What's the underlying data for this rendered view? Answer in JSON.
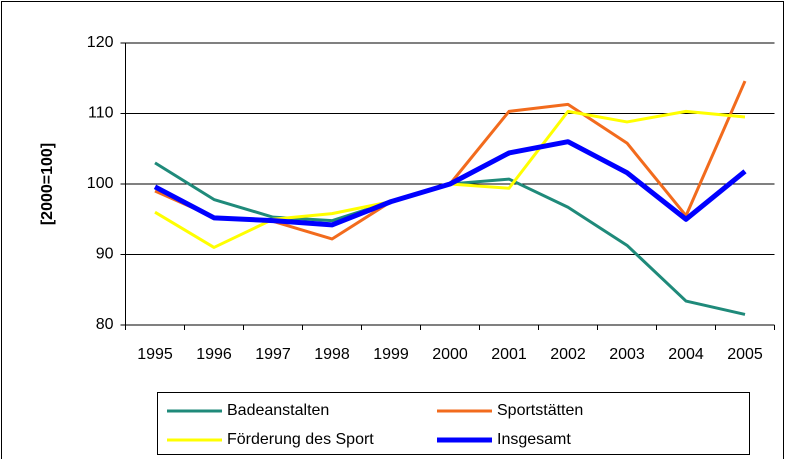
{
  "chart_data": {
    "type": "line",
    "y_label": "[2000=100]",
    "categories": [
      "1995",
      "1996",
      "1997",
      "1998",
      "1999",
      "2000",
      "2001",
      "2002",
      "2003",
      "2004",
      "2005"
    ],
    "series": [
      {
        "name": "Badeanstalten",
        "color": "#1f8a7a",
        "width": 3,
        "values": [
          103,
          97.8,
          95.3,
          94.8,
          97.5,
          100,
          100.7,
          96.7,
          91.3,
          83.4,
          81.5
        ]
      },
      {
        "name": "Sportstätten",
        "color": "#f26b1d",
        "width": 3,
        "values": [
          99,
          95.3,
          94.7,
          92.2,
          97.5,
          100,
          110.3,
          111.3,
          105.8,
          95.5,
          114.6
        ]
      },
      {
        "name": "Förderung des Sport",
        "color": "#ffff00",
        "width": 3,
        "values": [
          96,
          91,
          95,
          95.8,
          97.5,
          100,
          99.4,
          110.3,
          108.8,
          110.3,
          109.5
        ]
      },
      {
        "name": "Insgesamt",
        "color": "#0000ff",
        "width": 5,
        "values": [
          99.6,
          95.2,
          94.8,
          94.2,
          97.5,
          100,
          104.4,
          106,
          101.6,
          95,
          101.8
        ]
      }
    ],
    "ylim": [
      80,
      120
    ],
    "yticks": [
      80,
      90,
      100,
      110,
      120
    ],
    "grid": true
  }
}
